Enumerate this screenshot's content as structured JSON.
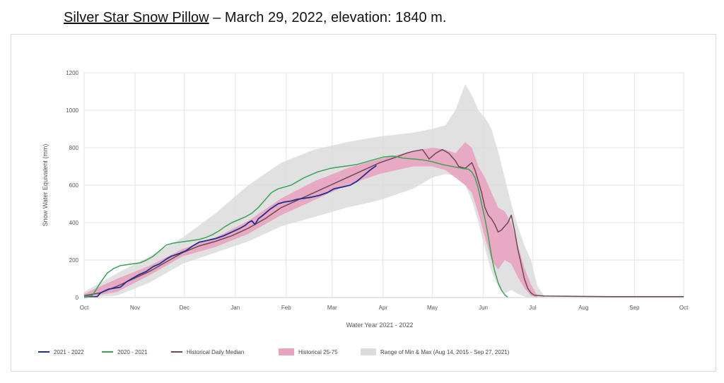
{
  "header": {
    "station": "Silver Star Snow Pillow",
    "rest": " – March 29, 2022, elevation: 1840 m."
  },
  "chart_data": {
    "type": "line",
    "xlabel": "Water Year 2021 - 2022",
    "ylabel": "Snow Water Equivalent (mm)",
    "ylim": [
      0,
      1200
    ],
    "yticks": [
      0,
      200,
      400,
      600,
      800,
      1000,
      1200
    ],
    "xlim": [
      0,
      365
    ],
    "xticks": [
      {
        "label": "Oct",
        "day": 0
      },
      {
        "label": "Nov",
        "day": 31
      },
      {
        "label": "Dec",
        "day": 61
      },
      {
        "label": "Jan",
        "day": 92
      },
      {
        "label": "Feb",
        "day": 123
      },
      {
        "label": "Mar",
        "day": 151
      },
      {
        "label": "Apr",
        "day": 182
      },
      {
        "label": "May",
        "day": 212
      },
      {
        "label": "Jun",
        "day": 243
      },
      {
        "label": "Jul",
        "day": 273
      },
      {
        "label": "Aug",
        "day": 304
      },
      {
        "label": "Sep",
        "day": 335
      },
      {
        "label": "Oct",
        "day": 365
      }
    ],
    "grid": true,
    "legend_position": "bottom",
    "series": [
      {
        "name": "2021 - 2022",
        "kind": "line",
        "color": "#1f2f8f",
        "x": [
          0,
          8,
          10,
          15,
          22,
          26,
          29,
          33,
          38,
          42,
          46,
          50,
          53,
          58,
          62,
          66,
          70,
          75,
          80,
          85,
          90,
          95,
          98,
          100,
          102,
          104,
          106,
          109,
          113,
          118,
          122,
          126,
          130,
          134,
          138,
          143,
          148,
          152,
          157,
          162,
          166,
          170,
          174,
          178
        ],
        "y": [
          0,
          5,
          25,
          45,
          55,
          85,
          100,
          120,
          140,
          165,
          180,
          205,
          220,
          235,
          250,
          275,
          295,
          305,
          315,
          330,
          350,
          370,
          385,
          400,
          410,
          390,
          420,
          440,
          470,
          500,
          510,
          515,
          525,
          530,
          535,
          545,
          560,
          580,
          590,
          600,
          620,
          650,
          680,
          705
        ]
      },
      {
        "name": "2020 - 2021",
        "kind": "line",
        "color": "#3aa356",
        "x": [
          0,
          5,
          10,
          14,
          18,
          22,
          26,
          30,
          34,
          38,
          42,
          46,
          50,
          54,
          58,
          62,
          66,
          70,
          74,
          78,
          82,
          86,
          90,
          94,
          98,
          102,
          106,
          110,
          114,
          118,
          122,
          126,
          130,
          134,
          138,
          142,
          146,
          150,
          154,
          158,
          162,
          166,
          170,
          176,
          182,
          188,
          194,
          200,
          206,
          212,
          218,
          224,
          230,
          234,
          236,
          238,
          240,
          242,
          244,
          246,
          248,
          250,
          252,
          254,
          256,
          258
        ],
        "y": [
          5,
          10,
          80,
          130,
          155,
          170,
          175,
          180,
          185,
          200,
          220,
          250,
          280,
          290,
          295,
          300,
          305,
          310,
          320,
          335,
          355,
          380,
          400,
          415,
          430,
          450,
          480,
          520,
          560,
          580,
          590,
          600,
          620,
          640,
          655,
          670,
          680,
          690,
          695,
          700,
          705,
          710,
          720,
          735,
          750,
          755,
          745,
          740,
          735,
          725,
          710,
          700,
          690,
          685,
          670,
          640,
          580,
          500,
          420,
          330,
          220,
          140,
          80,
          40,
          15,
          0
        ]
      },
      {
        "name": "Historical Daily Median",
        "kind": "line",
        "color": "#6b4a55",
        "x": [
          0,
          10,
          20,
          30,
          40,
          50,
          60,
          70,
          80,
          90,
          100,
          110,
          120,
          130,
          140,
          150,
          160,
          170,
          180,
          190,
          196,
          200,
          206,
          210,
          214,
          218,
          222,
          226,
          228,
          232,
          236,
          238,
          240,
          242,
          244,
          246,
          248,
          250,
          252,
          254,
          256,
          258,
          260,
          262,
          264,
          266,
          268,
          270,
          272,
          274,
          280,
          300,
          320,
          340,
          365
        ],
        "y": [
          10,
          25,
          60,
          100,
          140,
          190,
          240,
          275,
          300,
          330,
          370,
          420,
          480,
          520,
          560,
          600,
          640,
          680,
          720,
          750,
          770,
          780,
          790,
          740,
          770,
          790,
          770,
          730,
          700,
          690,
          720,
          680,
          620,
          560,
          480,
          440,
          420,
          390,
          350,
          360,
          380,
          400,
          440,
          360,
          260,
          180,
          100,
          50,
          25,
          12,
          8,
          6,
          5,
          5,
          5
        ]
      }
    ],
    "bands": [
      {
        "name": "Historical 25-75",
        "color": "#e8a3c1",
        "x": [
          0,
          20,
          40,
          60,
          80,
          100,
          120,
          140,
          160,
          180,
          200,
          212,
          220,
          226,
          232,
          236,
          240,
          244,
          248,
          252,
          256,
          260,
          264,
          268,
          272,
          276
        ],
        "low": [
          0,
          30,
          120,
          220,
          270,
          340,
          440,
          520,
          600,
          660,
          700,
          700,
          680,
          640,
          600,
          560,
          450,
          320,
          200,
          150,
          200,
          180,
          110,
          50,
          10,
          0
        ],
        "high": [
          20,
          100,
          170,
          260,
          320,
          410,
          530,
          620,
          690,
          740,
          780,
          800,
          790,
          770,
          830,
          800,
          700,
          640,
          560,
          480,
          460,
          400,
          280,
          160,
          70,
          10
        ]
      },
      {
        "name": "Range of Min & Max (Aug 14, 2015 - Sep 27, 2021)",
        "color": "#dcdcdc",
        "x": [
          0,
          20,
          40,
          60,
          80,
          100,
          120,
          140,
          160,
          180,
          200,
          212,
          220,
          226,
          232,
          236,
          240,
          244,
          248,
          252,
          256,
          260,
          264,
          268,
          272,
          276,
          280
        ],
        "low": [
          0,
          10,
          80,
          180,
          240,
          300,
          380,
          430,
          480,
          520,
          580,
          640,
          660,
          650,
          600,
          520,
          400,
          260,
          140,
          60,
          20,
          40,
          20,
          5,
          0,
          0,
          0
        ],
        "high": [
          30,
          130,
          220,
          320,
          450,
          600,
          720,
          790,
          830,
          860,
          880,
          900,
          920,
          1000,
          1140,
          1080,
          1000,
          960,
          900,
          780,
          640,
          500,
          380,
          280,
          200,
          60,
          10
        ]
      }
    ]
  }
}
